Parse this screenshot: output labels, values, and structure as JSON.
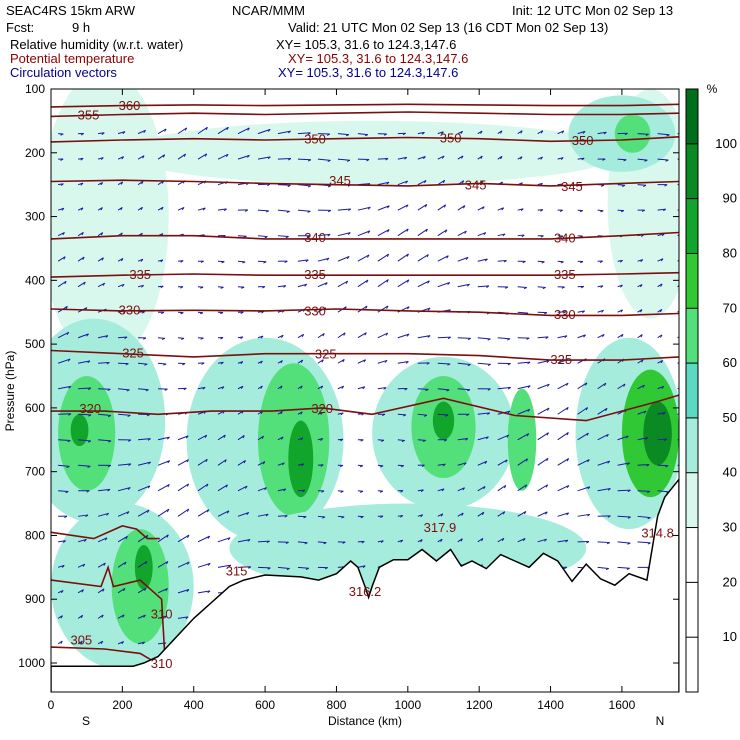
{
  "header": {
    "model": "SEAC4RS 15km ARW",
    "org": "NCAR/MMM",
    "init": "Init: 12 UTC Mon 02 Sep 13",
    "fcst_label": "Fcst:",
    "fcst_value": "9 h",
    "valid": "Valid: 21 UTC Mon 02 Sep 13 (16 CDT Mon 02 Sep 13)",
    "fields": [
      {
        "name": "Relative humidity (w.r.t. water)",
        "xy": "XY= 105.3, 31.6 to 124.3,147.6",
        "color": "#000000"
      },
      {
        "name": "Potential temperature",
        "xy": "XY= 105.3, 31.6 to 124.3,147.6",
        "color": "#8b0000"
      },
      {
        "name": "Circulation vectors",
        "xy": "XY= 105.3, 31.6 to 124.3,147.6",
        "color": "#00008b"
      }
    ]
  },
  "chart_data": {
    "type": "heatmap",
    "xlabel": "Distance (km)",
    "ylabel": "Pressure (hPa)",
    "xlim": [
      0,
      1760
    ],
    "ylim": [
      1050,
      100
    ],
    "x_ticks": [
      0,
      200,
      400,
      600,
      800,
      1000,
      1200,
      1400,
      1600
    ],
    "y_ticks": [
      100,
      200,
      300,
      400,
      500,
      600,
      700,
      800,
      900,
      1000
    ],
    "x_end_labels": {
      "left": "S",
      "right": "N"
    },
    "colorbar": {
      "unit": "%",
      "ticks": [
        10,
        20,
        30,
        40,
        50,
        60,
        70,
        80,
        90,
        100
      ],
      "levels": [
        {
          "from": 30,
          "to": 40,
          "color": "#d8f8ee"
        },
        {
          "from": 40,
          "to": 50,
          "color": "#a6ecdc"
        },
        {
          "from": 50,
          "to": 60,
          "color": "#5bd9c3"
        },
        {
          "from": 60,
          "to": 70,
          "color": "#53e07a"
        },
        {
          "from": 70,
          "to": 80,
          "color": "#30c935"
        },
        {
          "from": 80,
          "to": 90,
          "color": "#12a52c"
        },
        {
          "from": 90,
          "to": 100,
          "color": "#0b8a24"
        },
        {
          "from": 100,
          "to": 110,
          "color": "#006e1a"
        }
      ]
    },
    "theta_contours": [
      {
        "value": 305,
        "points": [
          [
            0,
            975
          ],
          [
            150,
            978
          ],
          [
            250,
            985
          ],
          [
            295,
            1000
          ]
        ]
      },
      {
        "value": 310,
        "points": [
          [
            0,
            870
          ],
          [
            140,
            880
          ],
          [
            160,
            850
          ],
          [
            175,
            880
          ],
          [
            250,
            870
          ],
          [
            310,
            900
          ],
          [
            320,
            1000
          ]
        ]
      },
      {
        "value": 315,
        "points": [
          [
            0,
            795
          ],
          [
            120,
            805
          ],
          [
            200,
            785
          ],
          [
            240,
            790
          ],
          [
            270,
            805
          ],
          [
            305,
            805
          ]
        ]
      },
      {
        "value": 320,
        "points": [
          [
            0,
            605
          ],
          [
            150,
            605
          ],
          [
            300,
            610
          ],
          [
            450,
            605
          ],
          [
            620,
            605
          ],
          [
            760,
            600
          ],
          [
            900,
            610
          ],
          [
            1100,
            585
          ],
          [
            1300,
            612
          ],
          [
            1500,
            620
          ],
          [
            1700,
            590
          ],
          [
            1760,
            580
          ]
        ]
      },
      {
        "value": 325,
        "points": [
          [
            0,
            510
          ],
          [
            200,
            515
          ],
          [
            400,
            520
          ],
          [
            600,
            515
          ],
          [
            800,
            515
          ],
          [
            1000,
            515
          ],
          [
            1200,
            518
          ],
          [
            1400,
            525
          ],
          [
            1600,
            525
          ],
          [
            1760,
            520
          ]
        ]
      },
      {
        "value": 330,
        "points": [
          [
            0,
            445
          ],
          [
            200,
            448
          ],
          [
            400,
            447
          ],
          [
            600,
            448
          ],
          [
            800,
            445
          ],
          [
            1000,
            448
          ],
          [
            1200,
            450
          ],
          [
            1400,
            455
          ],
          [
            1600,
            455
          ],
          [
            1760,
            452
          ]
        ]
      },
      {
        "value": 335,
        "points": [
          [
            0,
            395
          ],
          [
            200,
            392
          ],
          [
            400,
            390
          ],
          [
            600,
            392
          ],
          [
            800,
            392
          ],
          [
            1000,
            392
          ],
          [
            1200,
            392
          ],
          [
            1400,
            392
          ],
          [
            1600,
            390
          ],
          [
            1760,
            388
          ]
        ]
      },
      {
        "value": 340,
        "points": [
          [
            0,
            335
          ],
          [
            200,
            330
          ],
          [
            400,
            330
          ],
          [
            600,
            335
          ],
          [
            800,
            335
          ],
          [
            1000,
            335
          ],
          [
            1200,
            335
          ],
          [
            1400,
            335
          ],
          [
            1600,
            330
          ],
          [
            1760,
            325
          ]
        ]
      },
      {
        "value": 345,
        "points": [
          [
            0,
            245
          ],
          [
            200,
            243
          ],
          [
            400,
            245
          ],
          [
            600,
            248
          ],
          [
            800,
            250
          ],
          [
            1000,
            252
          ],
          [
            1200,
            248
          ],
          [
            1400,
            252
          ],
          [
            1600,
            248
          ],
          [
            1760,
            245
          ]
        ]
      },
      {
        "value": 350,
        "points": [
          [
            0,
            183
          ],
          [
            200,
            180
          ],
          [
            400,
            178
          ],
          [
            600,
            180
          ],
          [
            800,
            178
          ],
          [
            1000,
            176
          ],
          [
            1200,
            178
          ],
          [
            1400,
            182
          ],
          [
            1600,
            180
          ],
          [
            1760,
            175
          ]
        ]
      },
      {
        "value": 355,
        "points": [
          [
            0,
            143
          ],
          [
            200,
            140
          ],
          [
            400,
            138
          ],
          [
            600,
            140
          ],
          [
            800,
            138
          ],
          [
            1000,
            136
          ],
          [
            1200,
            138
          ],
          [
            1400,
            140
          ],
          [
            1600,
            140
          ],
          [
            1760,
            138
          ]
        ]
      },
      {
        "value": 360,
        "points": [
          [
            0,
            128
          ],
          [
            200,
            126
          ],
          [
            400,
            125
          ],
          [
            600,
            126
          ],
          [
            800,
            125
          ],
          [
            1000,
            124
          ],
          [
            1200,
            125
          ],
          [
            1400,
            126
          ],
          [
            1600,
            126
          ],
          [
            1760,
            124
          ]
        ]
      }
    ],
    "theta_labels": [
      {
        "text": "360",
        "x": 220,
        "p": 125
      },
      {
        "text": "355",
        "x": 105,
        "p": 140
      },
      {
        "text": "350",
        "x": 740,
        "p": 178
      },
      {
        "text": "350",
        "x": 1120,
        "p": 176
      },
      {
        "text": "350",
        "x": 1490,
        "p": 180
      },
      {
        "text": "345",
        "x": 810,
        "p": 243
      },
      {
        "text": "345",
        "x": 1190,
        "p": 250
      },
      {
        "text": "345",
        "x": 1460,
        "p": 252
      },
      {
        "text": "340",
        "x": 740,
        "p": 332
      },
      {
        "text": "340",
        "x": 1440,
        "p": 333
      },
      {
        "text": "335",
        "x": 250,
        "p": 390
      },
      {
        "text": "335",
        "x": 740,
        "p": 390
      },
      {
        "text": "335",
        "x": 1440,
        "p": 390
      },
      {
        "text": "330",
        "x": 220,
        "p": 446
      },
      {
        "text": "330",
        "x": 740,
        "p": 447
      },
      {
        "text": "330",
        "x": 1440,
        "p": 453
      },
      {
        "text": "325",
        "x": 230,
        "p": 513
      },
      {
        "text": "325",
        "x": 770,
        "p": 515
      },
      {
        "text": "325",
        "x": 1430,
        "p": 523
      },
      {
        "text": "320",
        "x": 110,
        "p": 600
      },
      {
        "text": "320",
        "x": 760,
        "p": 600
      },
      {
        "text": "315",
        "x": 520,
        "p": 855
      },
      {
        "text": "310",
        "x": 310,
        "p": 922
      },
      {
        "text": "310",
        "x": 310,
        "p": 1000
      },
      {
        "text": "305",
        "x": 85,
        "p": 963
      }
    ],
    "annotations": [
      {
        "text": "316.2",
        "x": 880,
        "p": 887
      },
      {
        "text": "317.9",
        "x": 1090,
        "p": 787
      },
      {
        "text": "314.8",
        "x": 1700,
        "p": 795
      }
    ],
    "terrain": [
      [
        0,
        1005
      ],
      [
        230,
        1005
      ],
      [
        260,
        1000
      ],
      [
        300,
        990
      ],
      [
        400,
        930
      ],
      [
        500,
        880
      ],
      [
        540,
        870
      ],
      [
        600,
        862
      ],
      [
        700,
        865
      ],
      [
        750,
        870
      ],
      [
        800,
        860
      ],
      [
        840,
        840
      ],
      [
        860,
        850
      ],
      [
        880,
        880
      ],
      [
        890,
        897
      ],
      [
        900,
        880
      ],
      [
        920,
        850
      ],
      [
        960,
        838
      ],
      [
        1000,
        838
      ],
      [
        1040,
        822
      ],
      [
        1080,
        840
      ],
      [
        1120,
        822
      ],
      [
        1150,
        848
      ],
      [
        1180,
        840
      ],
      [
        1220,
        852
      ],
      [
        1260,
        830
      ],
      [
        1300,
        840
      ],
      [
        1340,
        850
      ],
      [
        1380,
        828
      ],
      [
        1420,
        840
      ],
      [
        1460,
        872
      ],
      [
        1500,
        845
      ],
      [
        1540,
        868
      ],
      [
        1580,
        878
      ],
      [
        1620,
        860
      ],
      [
        1670,
        870
      ],
      [
        1700,
        770
      ],
      [
        1720,
        740
      ],
      [
        1760,
        712
      ],
      [
        1760,
        1050
      ],
      [
        0,
        1050
      ]
    ],
    "rh_blobs": [
      {
        "level": 35,
        "cx": 150,
        "p": 300,
        "rx": 180,
        "rp": 230
      },
      {
        "level": 35,
        "cx": 900,
        "p": 200,
        "rx": 700,
        "rp": 50
      },
      {
        "level": 35,
        "cx": 1680,
        "p": 280,
        "rx": 120,
        "rp": 180
      },
      {
        "level": 45,
        "cx": 1600,
        "p": 170,
        "rx": 150,
        "rp": 60
      },
      {
        "level": 65,
        "cx": 1630,
        "p": 170,
        "rx": 50,
        "rp": 30
      },
      {
        "level": 45,
        "cx": 120,
        "p": 620,
        "rx": 200,
        "rp": 160
      },
      {
        "level": 65,
        "cx": 100,
        "p": 640,
        "rx": 80,
        "rp": 90
      },
      {
        "level": 85,
        "cx": 80,
        "p": 635,
        "rx": 25,
        "rp": 25
      },
      {
        "level": 45,
        "cx": 600,
        "p": 650,
        "rx": 220,
        "rp": 160
      },
      {
        "level": 65,
        "cx": 680,
        "p": 650,
        "rx": 100,
        "rp": 120
      },
      {
        "level": 85,
        "cx": 700,
        "p": 680,
        "rx": 35,
        "rp": 60
      },
      {
        "level": 45,
        "cx": 1100,
        "p": 640,
        "rx": 200,
        "rp": 120
      },
      {
        "level": 65,
        "cx": 1100,
        "p": 630,
        "rx": 90,
        "rp": 80
      },
      {
        "level": 85,
        "cx": 1100,
        "p": 620,
        "rx": 30,
        "rp": 30
      },
      {
        "level": 65,
        "cx": 1320,
        "p": 650,
        "rx": 40,
        "rp": 80
      },
      {
        "level": 45,
        "cx": 1620,
        "p": 640,
        "rx": 150,
        "rp": 150
      },
      {
        "level": 75,
        "cx": 1680,
        "p": 640,
        "rx": 80,
        "rp": 100
      },
      {
        "level": 95,
        "cx": 1700,
        "p": 640,
        "rx": 40,
        "rp": 50
      },
      {
        "level": 45,
        "cx": 200,
        "p": 880,
        "rx": 200,
        "rp": 130
      },
      {
        "level": 65,
        "cx": 250,
        "p": 880,
        "rx": 80,
        "rp": 90
      },
      {
        "level": 85,
        "cx": 260,
        "p": 850,
        "rx": 25,
        "rp": 35
      },
      {
        "level": 45,
        "cx": 1000,
        "p": 820,
        "rx": 500,
        "rp": 70
      }
    ]
  }
}
